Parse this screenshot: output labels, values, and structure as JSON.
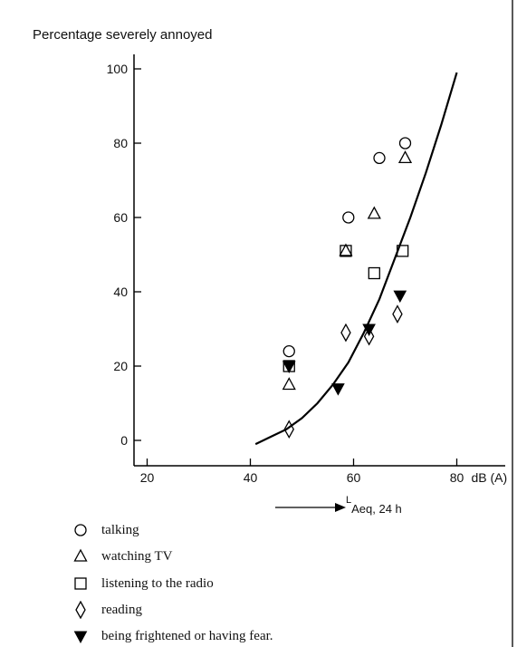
{
  "chart_data": {
    "type": "scatter",
    "ylabel": "Percentage severely annoyed",
    "xunit": "dB (A)",
    "xlabel_prefix": "L",
    "xlabel_sub": "Aeq, 24 h",
    "xlim": [
      15,
      85
    ],
    "ylim": [
      -6,
      106
    ],
    "xticks": [
      20,
      40,
      60,
      80
    ],
    "yticks": [
      0,
      20,
      40,
      60,
      80,
      100
    ],
    "grid": false,
    "legend_position": "bottom-left",
    "series": [
      {
        "name": "talking",
        "marker": "circle",
        "x": [
          47.5,
          59,
          65,
          70
        ],
        "y": [
          24,
          60,
          76,
          80
        ]
      },
      {
        "name": "watching TV",
        "marker": "triangle-up",
        "x": [
          47.5,
          58.5,
          64,
          70
        ],
        "y": [
          15,
          51,
          61,
          76
        ]
      },
      {
        "name": "listening to the radio",
        "marker": "square",
        "x": [
          47.5,
          58.5,
          64,
          69.5
        ],
        "y": [
          20,
          51,
          45,
          51
        ]
      },
      {
        "name": "reading",
        "marker": "diamond",
        "x": [
          47.5,
          58.5,
          63,
          68.5
        ],
        "y": [
          3,
          29,
          28,
          34
        ]
      },
      {
        "name": "being frightened or having fear.",
        "marker": "triangle-down-filled",
        "x": [
          47.5,
          57,
          63,
          69
        ],
        "y": [
          20,
          14,
          30,
          39
        ]
      }
    ],
    "curve": {
      "x": [
        41,
        44,
        47,
        50,
        53,
        56,
        59,
        62,
        65,
        68,
        71,
        74,
        77,
        80
      ],
      "y": [
        -1,
        1,
        3,
        6,
        10,
        15,
        21,
        29,
        38,
        49,
        60,
        72,
        85,
        99
      ]
    }
  }
}
